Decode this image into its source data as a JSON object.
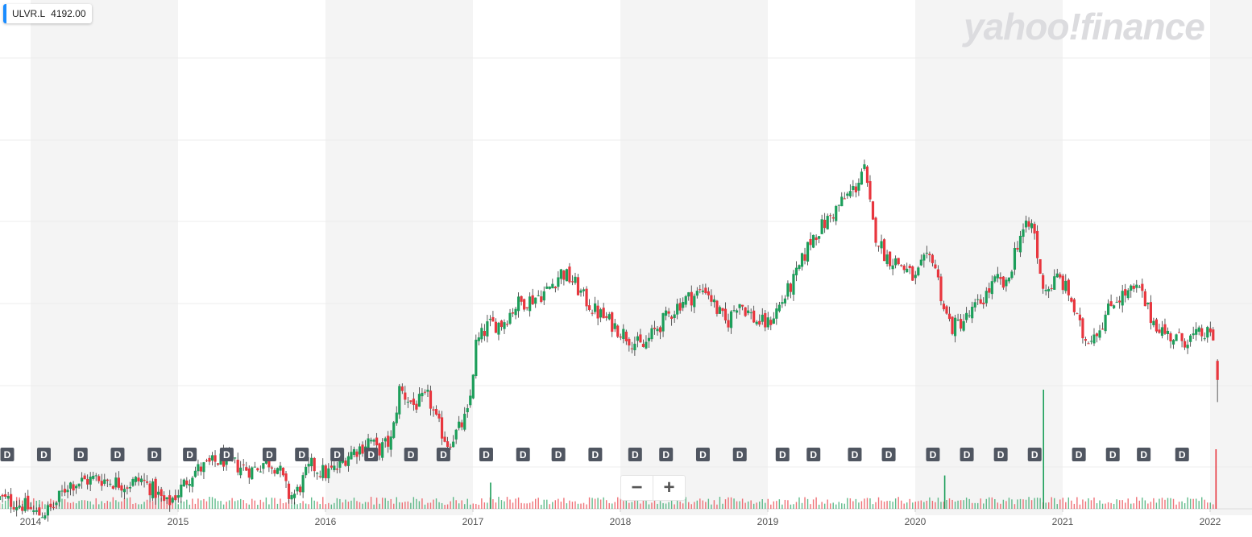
{
  "ticker": {
    "symbol": "ULVR.L",
    "price": "4192.00"
  },
  "logo_text": "yahoo!finance",
  "zoom": {
    "minus": "−",
    "plus": "+"
  },
  "colors": {
    "up": "#1c9e5a",
    "down": "#e8363e",
    "grid": "#ececec",
    "band": "#f4f4f4",
    "marker": "#505661",
    "wick": "#333333"
  },
  "chart_data": {
    "type": "candlestick",
    "title": "",
    "xlabel": "",
    "ylabel": "",
    "x_ticks": [
      "2014",
      "2015",
      "2016",
      "2017",
      "2018",
      "2019",
      "2020",
      "2021",
      "2022"
    ],
    "x_range": [
      2013.79,
      2022.28
    ],
    "y_range": [
      2300,
      5600
    ],
    "grid": true,
    "alternating_year_bands": true,
    "dividend_marker_label": "D",
    "dividend_dates": [
      2013.79,
      2014.09,
      2014.34,
      2014.59,
      2014.84,
      2015.08,
      2015.33,
      2015.62,
      2015.84,
      2016.08,
      2016.31,
      2016.58,
      2016.8,
      2017.09,
      2017.34,
      2017.58,
      2017.83,
      2018.1,
      2018.31,
      2018.56,
      2018.81,
      2019.1,
      2019.31,
      2019.59,
      2019.82,
      2020.12,
      2020.35,
      2020.58,
      2020.81,
      2021.11,
      2021.34,
      2021.55,
      2021.81
    ],
    "close_path": [
      [
        2013.79,
        2480
      ],
      [
        2013.95,
        2440
      ],
      [
        2014.05,
        2380
      ],
      [
        2014.15,
        2420
      ],
      [
        2014.25,
        2570
      ],
      [
        2014.35,
        2590
      ],
      [
        2014.45,
        2610
      ],
      [
        2014.55,
        2590
      ],
      [
        2014.65,
        2570
      ],
      [
        2014.75,
        2600
      ],
      [
        2014.85,
        2520
      ],
      [
        2014.92,
        2440
      ],
      [
        2015.0,
        2520
      ],
      [
        2015.1,
        2650
      ],
      [
        2015.2,
        2690
      ],
      [
        2015.3,
        2730
      ],
      [
        2015.4,
        2690
      ],
      [
        2015.5,
        2660
      ],
      [
        2015.6,
        2720
      ],
      [
        2015.68,
        2680
      ],
      [
        2015.75,
        2500
      ],
      [
        2015.8,
        2510
      ],
      [
        2015.9,
        2690
      ],
      [
        2016.0,
        2640
      ],
      [
        2016.08,
        2670
      ],
      [
        2016.15,
        2760
      ],
      [
        2016.25,
        2810
      ],
      [
        2016.3,
        2860
      ],
      [
        2016.35,
        2780
      ],
      [
        2016.45,
        2850
      ],
      [
        2016.5,
        3170
      ],
      [
        2016.6,
        3070
      ],
      [
        2016.7,
        3120
      ],
      [
        2016.75,
        2970
      ],
      [
        2016.83,
        2830
      ],
      [
        2016.9,
        2910
      ],
      [
        2016.97,
        3020
      ],
      [
        2017.02,
        3450
      ],
      [
        2017.1,
        3570
      ],
      [
        2017.2,
        3590
      ],
      [
        2017.3,
        3710
      ],
      [
        2017.4,
        3740
      ],
      [
        2017.5,
        3790
      ],
      [
        2017.6,
        3910
      ],
      [
        2017.68,
        3850
      ],
      [
        2017.75,
        3750
      ],
      [
        2017.82,
        3670
      ],
      [
        2017.95,
        3580
      ],
      [
        2018.05,
        3500
      ],
      [
        2018.15,
        3430
      ],
      [
        2018.25,
        3560
      ],
      [
        2018.32,
        3630
      ],
      [
        2018.42,
        3730
      ],
      [
        2018.5,
        3760
      ],
      [
        2018.58,
        3810
      ],
      [
        2018.65,
        3680
      ],
      [
        2018.72,
        3580
      ],
      [
        2018.8,
        3730
      ],
      [
        2018.92,
        3600
      ],
      [
        2019.0,
        3580
      ],
      [
        2019.1,
        3730
      ],
      [
        2019.18,
        3860
      ],
      [
        2019.3,
        4130
      ],
      [
        2019.4,
        4230
      ],
      [
        2019.5,
        4350
      ],
      [
        2019.6,
        4450
      ],
      [
        2019.65,
        4580
      ],
      [
        2019.72,
        4170
      ],
      [
        2019.8,
        4010
      ],
      [
        2019.9,
        3960
      ],
      [
        2020.0,
        3860
      ],
      [
        2020.05,
        3960
      ],
      [
        2020.12,
        4010
      ],
      [
        2020.2,
        3660
      ],
      [
        2020.25,
        3560
      ],
      [
        2020.35,
        3620
      ],
      [
        2020.45,
        3730
      ],
      [
        2020.55,
        3860
      ],
      [
        2020.62,
        3810
      ],
      [
        2020.68,
        4060
      ],
      [
        2020.72,
        4160
      ],
      [
        2020.8,
        4210
      ],
      [
        2020.85,
        3860
      ],
      [
        2020.9,
        3800
      ],
      [
        2020.97,
        3880
      ],
      [
        2021.05,
        3760
      ],
      [
        2021.1,
        3600
      ],
      [
        2021.15,
        3480
      ],
      [
        2021.25,
        3560
      ],
      [
        2021.35,
        3740
      ],
      [
        2021.45,
        3780
      ],
      [
        2021.52,
        3800
      ],
      [
        2021.6,
        3620
      ],
      [
        2021.7,
        3520
      ],
      [
        2021.8,
        3480
      ],
      [
        2021.9,
        3500
      ],
      [
        2021.95,
        3520
      ],
      [
        2022.03,
        3500
      ]
    ],
    "last_candle": {
      "x": 2022.05,
      "open": 3350,
      "high": 3360,
      "low": 3090,
      "close": 3230
    },
    "volume_spikes": [
      {
        "x": 2020.87,
        "level": 1.0
      },
      {
        "x": 2022.04,
        "level": 0.5
      },
      {
        "x": 2017.12,
        "level": 0.22
      },
      {
        "x": 2020.2,
        "level": 0.28
      }
    ]
  }
}
